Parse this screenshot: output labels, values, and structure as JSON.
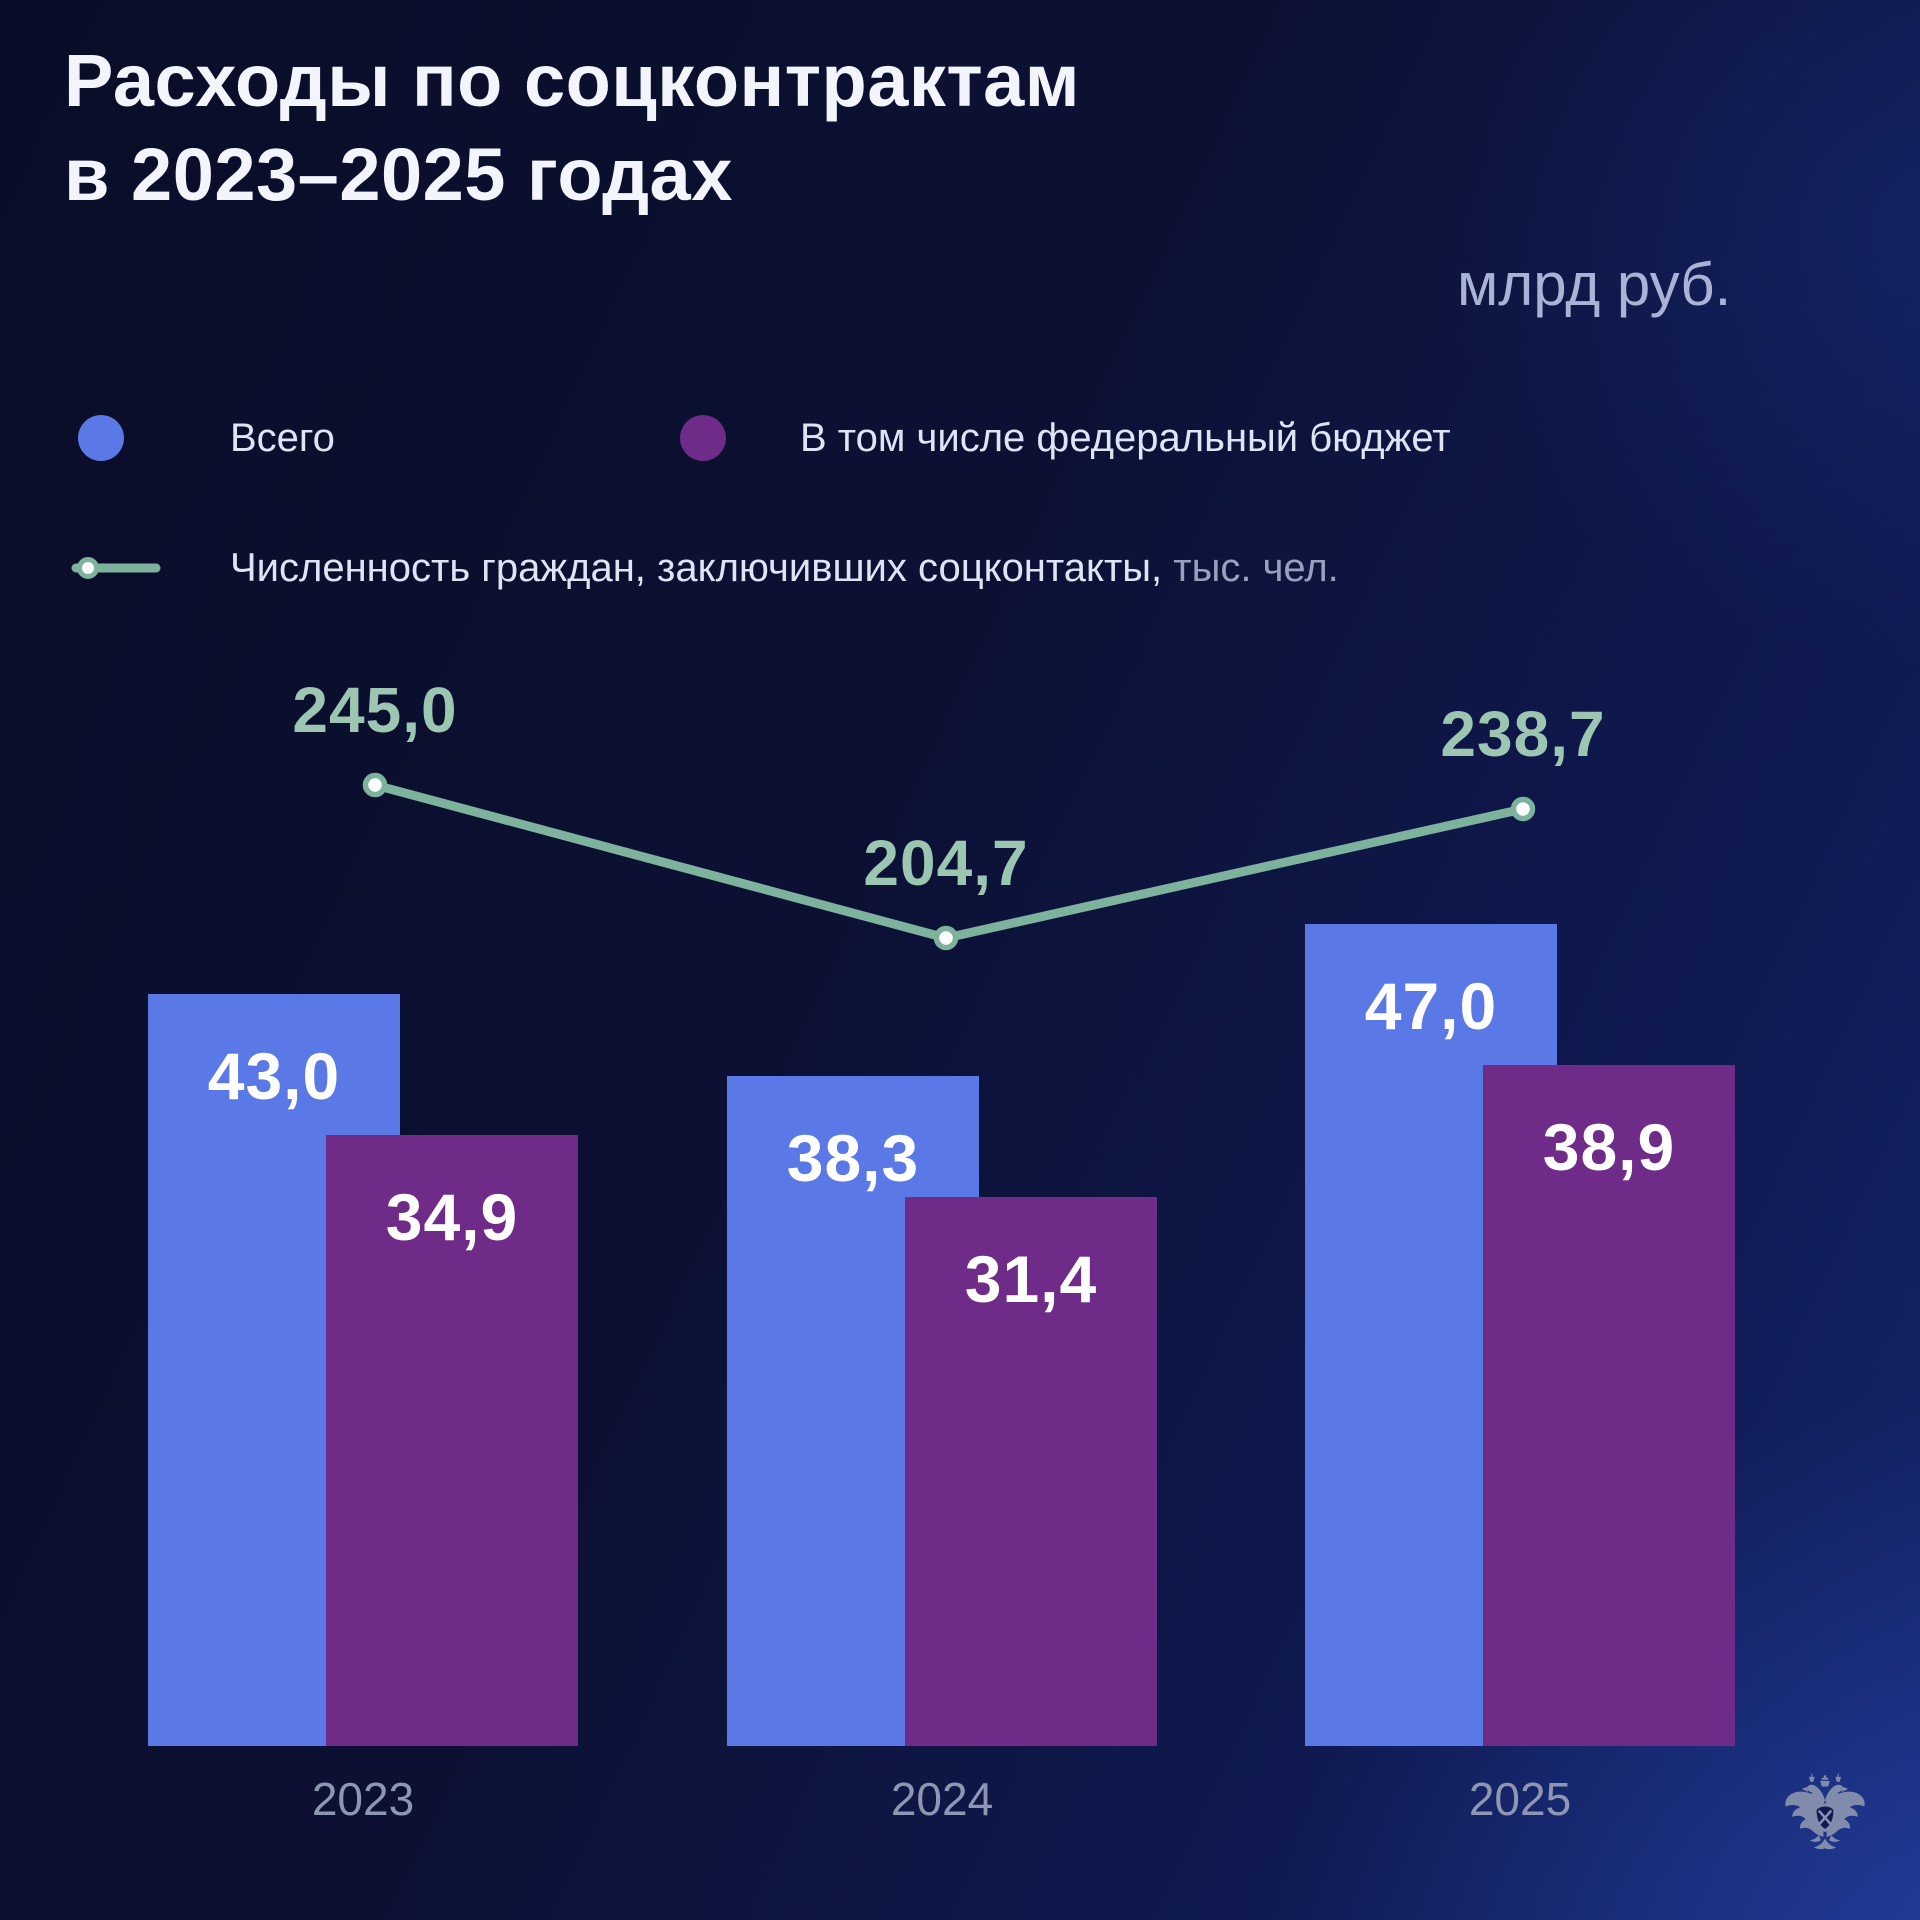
{
  "title": {
    "line1": "Расходы по соцконтрактам",
    "line2": "в 2023–2025 годах"
  },
  "unit_label": "млрд руб.",
  "legend": {
    "total": "Всего",
    "federal": "В том числе федеральный бюджет",
    "line_label": "Численность граждан, заключивших соцконтакты,",
    "line_unit": "тыс. чел."
  },
  "colors": {
    "total_bar": "#5a79e6",
    "federal_bar": "#6e2b88",
    "line": "#7db29d",
    "line_value_text": "#9cc6b2",
    "bar_value_text": "#ffffff",
    "title_text": "#f2f5fb",
    "unit_text": "#a9b3d6",
    "legend_text": "#dde5f5",
    "muted_text": "#97a1bf",
    "axis_text": "#8d96b2",
    "background_top_left": "#0a0d27",
    "background_bottom_right": "#1c3186"
  },
  "chart_data": {
    "type": "bar",
    "title": "Расходы по соцконтрактам в 2023–2025 годах",
    "categories": [
      "2023",
      "2024",
      "2025"
    ],
    "series": [
      {
        "name": "Всего",
        "type": "bar",
        "color": "#5a79e6",
        "unit": "млрд руб.",
        "values": [
          43.0,
          38.3,
          47.0
        ]
      },
      {
        "name": "В том числе федеральный бюджет",
        "type": "bar",
        "color": "#6e2b88",
        "unit": "млрд руб.",
        "values": [
          34.9,
          31.4,
          38.9
        ]
      },
      {
        "name": "Численность граждан, заключивших соцконтакты",
        "type": "line",
        "color": "#7db29d",
        "unit": "тыс. чел.",
        "values": [
          245.0,
          204.7,
          238.7
        ]
      }
    ],
    "value_format": "decimal-comma-1",
    "grid": false,
    "legend_position": "top-left"
  },
  "logo": {
    "name": "minfin-eagle",
    "color": "#8a94b0"
  }
}
